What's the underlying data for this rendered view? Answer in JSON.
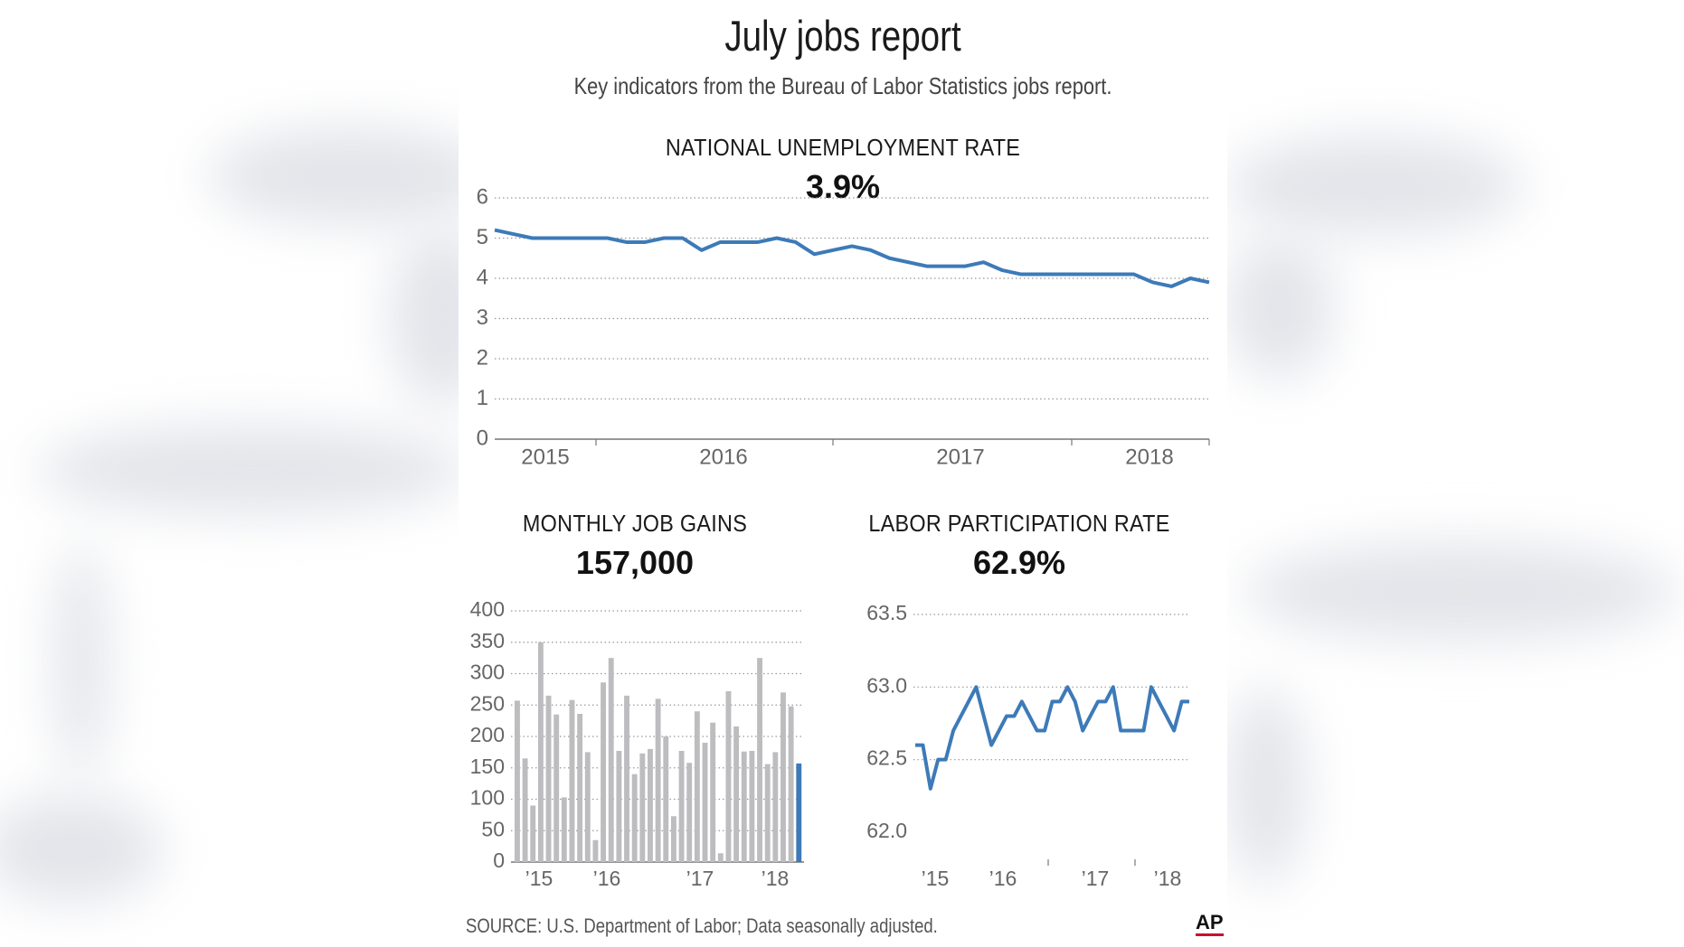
{
  "page": {
    "title": "July jobs report",
    "subtitle": "Key indicators from the Bureau of Labor Statistics jobs report.",
    "source": "SOURCE: U.S. Department of Labor; Data seasonally adjusted.",
    "logo": "AP",
    "colors": {
      "line": "#3d7ab8",
      "bar": "#bdbdc0",
      "bar_highlight": "#3d7ab8",
      "grid": "#999999",
      "logo_accent": "#c8102e"
    }
  },
  "chart_data": [
    {
      "type": "line",
      "title": "NATIONAL UNEMPLOYMENT RATE",
      "value_label": "3.9%",
      "ylim": [
        0,
        6
      ],
      "yticks": [
        "0",
        "1",
        "2",
        "3",
        "4",
        "5",
        "6"
      ],
      "xticks": [
        "2015",
        "2016",
        "2017",
        "2018"
      ],
      "grid": true,
      "series": [
        {
          "values": [
            5.2,
            5.1,
            5.0,
            5.0,
            5.0,
            5.0,
            5.0,
            4.9,
            4.9,
            5.0,
            5.0,
            4.7,
            4.9,
            4.9,
            4.9,
            5.0,
            4.9,
            4.6,
            4.7,
            4.8,
            4.7,
            4.5,
            4.4,
            4.3,
            4.3,
            4.3,
            4.4,
            4.2,
            4.1,
            4.1,
            4.1,
            4.1,
            4.1,
            4.1,
            4.1,
            3.9,
            3.8,
            4.0,
            3.9
          ]
        }
      ]
    },
    {
      "type": "bar",
      "title": "MONTHLY JOB GAINS",
      "value_label": "157,000",
      "ylim": [
        0,
        400
      ],
      "yticks": [
        "0",
        "50",
        "100",
        "150",
        "200",
        "250",
        "300",
        "350",
        "400"
      ],
      "xticks": [
        "’15",
        "’16",
        "’17",
        "’18"
      ],
      "grid": true,
      "values": [
        257,
        165,
        90,
        350,
        265,
        235,
        103,
        258,
        236,
        175,
        35,
        286,
        325,
        177,
        265,
        140,
        173,
        180,
        260,
        200,
        73,
        177,
        158,
        240,
        190,
        222,
        14,
        272,
        216,
        176,
        177,
        325,
        156,
        175,
        270,
        248,
        157
      ],
      "highlight_last": true
    },
    {
      "type": "line",
      "title": "LABOR PARTICIPATION RATE",
      "value_label": "62.9%",
      "ylim": [
        62.0,
        63.5
      ],
      "yticks": [
        "62.0",
        "62.5",
        "63.0",
        "63.5"
      ],
      "xticks": [
        "’15",
        "’16",
        "’17",
        "’18"
      ],
      "grid": true,
      "series": [
        {
          "values": [
            62.6,
            62.6,
            62.3,
            62.5,
            62.5,
            62.7,
            62.8,
            62.9,
            63.0,
            62.8,
            62.6,
            62.7,
            62.8,
            62.8,
            62.9,
            62.8,
            62.7,
            62.7,
            62.9,
            62.9,
            63.0,
            62.9,
            62.7,
            62.8,
            62.9,
            62.9,
            63.0,
            62.7,
            62.7,
            62.7,
            62.7,
            63.0,
            62.9,
            62.8,
            62.7,
            62.9,
            62.9
          ]
        }
      ]
    }
  ]
}
